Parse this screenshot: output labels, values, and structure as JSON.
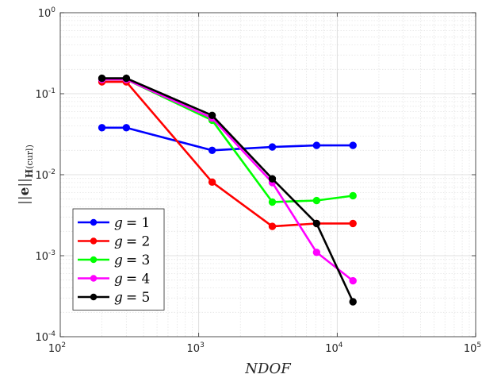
{
  "chart_data": {
    "type": "line",
    "xscale": "log",
    "yscale": "log",
    "xlim": [
      100,
      100000
    ],
    "ylim": [
      0.0001,
      1
    ],
    "xlabel": "NDOF",
    "ylabel_parts": {
      "norm_left": "||",
      "e": "e",
      "norm_right": "||",
      "space": "H",
      "op": "(curl)"
    },
    "x_ticks": [
      {
        "base": "10",
        "exp": "2"
      },
      {
        "base": "10",
        "exp": "3"
      },
      {
        "base": "10",
        "exp": "4"
      },
      {
        "base": "10",
        "exp": "5"
      }
    ],
    "y_ticks": [
      {
        "base": "10",
        "exp": "-4"
      },
      {
        "base": "10",
        "exp": "-3"
      },
      {
        "base": "10",
        "exp": "-2"
      },
      {
        "base": "10",
        "exp": "-1"
      },
      {
        "base": "10",
        "exp": "0"
      }
    ],
    "grid": true,
    "minor_grid": true,
    "legend_position": "bottom-left",
    "x": [
      200,
      300,
      1250,
      3400,
      7100,
      13000
    ],
    "series": [
      {
        "name": "g = 1",
        "var": "g",
        "eq": "= 1",
        "color": "#0000ff",
        "values": [
          0.038,
          0.038,
          0.02,
          0.022,
          0.023,
          0.023
        ]
      },
      {
        "name": "g = 2",
        "var": "g",
        "eq": "= 2",
        "color": "#ff0000",
        "values": [
          0.14,
          0.14,
          0.0081,
          0.0023,
          0.0025,
          0.0025
        ]
      },
      {
        "name": "g = 3",
        "var": "g",
        "eq": "= 3",
        "color": "#00ff00",
        "values": [
          0.15,
          0.15,
          0.047,
          0.0046,
          0.0048,
          0.0055
        ]
      },
      {
        "name": "g = 4",
        "var": "g",
        "eq": "= 4",
        "color": "#ff00ff",
        "values": [
          0.15,
          0.15,
          0.05,
          0.008,
          0.0011,
          0.00049
        ]
      },
      {
        "name": "g = 5",
        "var": "g",
        "eq": "= 5",
        "color": "#000000",
        "values": [
          0.155,
          0.155,
          0.054,
          0.0089,
          0.0025,
          0.00027
        ]
      }
    ]
  }
}
